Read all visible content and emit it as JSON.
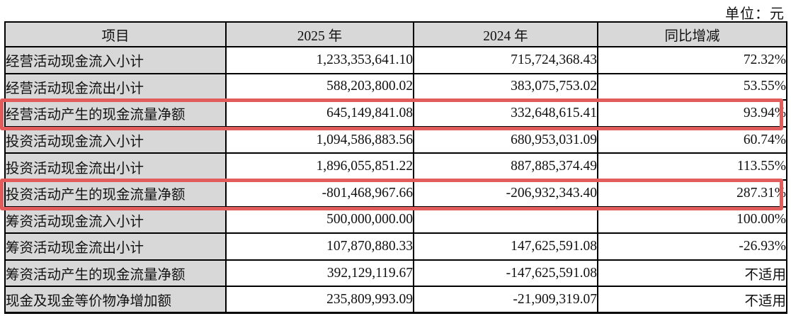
{
  "unit_label": "单位：元",
  "colors": {
    "highlight_border": "#e35c5c",
    "header_bg": "#d8d8d8",
    "table_border": "#000000"
  },
  "table": {
    "headers": [
      "项目",
      "2025 年",
      "2024 年",
      "同比增减"
    ],
    "rows": [
      {
        "item": "经营活动现金流入小计",
        "y2025": "1,233,353,641.10",
        "y2024": "715,724,368.43",
        "yoy": "72.32%",
        "highlighted": false
      },
      {
        "item": "经营活动现金流出小计",
        "y2025": "588,203,800.02",
        "y2024": "383,075,753.02",
        "yoy": "53.55%",
        "highlighted": false
      },
      {
        "item": "经营活动产生的现金流量净额",
        "y2025": "645,149,841.08",
        "y2024": "332,648,615.41",
        "yoy": "93.94%",
        "highlighted": true
      },
      {
        "item": "投资活动现金流入小计",
        "y2025": "1,094,586,883.56",
        "y2024": "680,953,031.09",
        "yoy": "60.74%",
        "highlighted": false
      },
      {
        "item": "投资活动现金流出小计",
        "y2025": "1,896,055,851.22",
        "y2024": "887,885,374.49",
        "yoy": "113.55%",
        "highlighted": false
      },
      {
        "item": "投资活动产生的现金流量净额",
        "y2025": "-801,468,967.66",
        "y2024": "-206,932,343.40",
        "yoy": "287.31%",
        "highlighted": true
      },
      {
        "item": "筹资活动现金流入小计",
        "y2025": "500,000,000.00",
        "y2024": "",
        "yoy": "100.00%",
        "highlighted": false
      },
      {
        "item": "筹资活动现金流出小计",
        "y2025": "107,870,880.33",
        "y2024": "147,625,591.08",
        "yoy": "-26.93%",
        "highlighted": false
      },
      {
        "item": "筹资活动产生的现金流量净额",
        "y2025": "392,129,119.67",
        "y2024": "-147,625,591.08",
        "yoy": "不适用",
        "highlighted": false
      },
      {
        "item": "现金及现金等价物净增加额",
        "y2025": "235,809,993.09",
        "y2024": "-21,909,319.07",
        "yoy": "不适用",
        "highlighted": false
      }
    ]
  }
}
